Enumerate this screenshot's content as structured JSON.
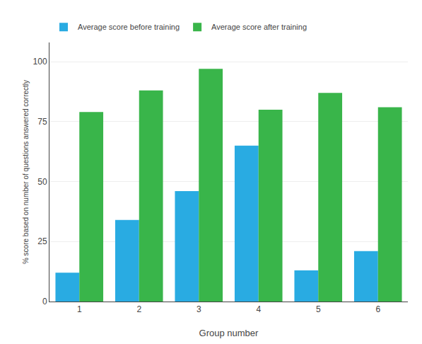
{
  "chart_data": {
    "type": "bar",
    "categories": [
      "1",
      "2",
      "3",
      "4",
      "5",
      "6"
    ],
    "series": [
      {
        "name": "Average score before training",
        "color": "#29ABE2",
        "values": [
          12,
          34,
          46,
          65,
          13,
          21
        ]
      },
      {
        "name": "Average score after training",
        "color": "#39B54A",
        "values": [
          79,
          88,
          97,
          80,
          87,
          81
        ]
      }
    ],
    "xlabel": "Group number",
    "ylabel": "% score based on number of questions answered correctly",
    "ylim": [
      0,
      108
    ],
    "yticks": [
      0,
      25,
      50,
      75,
      100
    ],
    "grid": true,
    "legend": "upper left"
  }
}
